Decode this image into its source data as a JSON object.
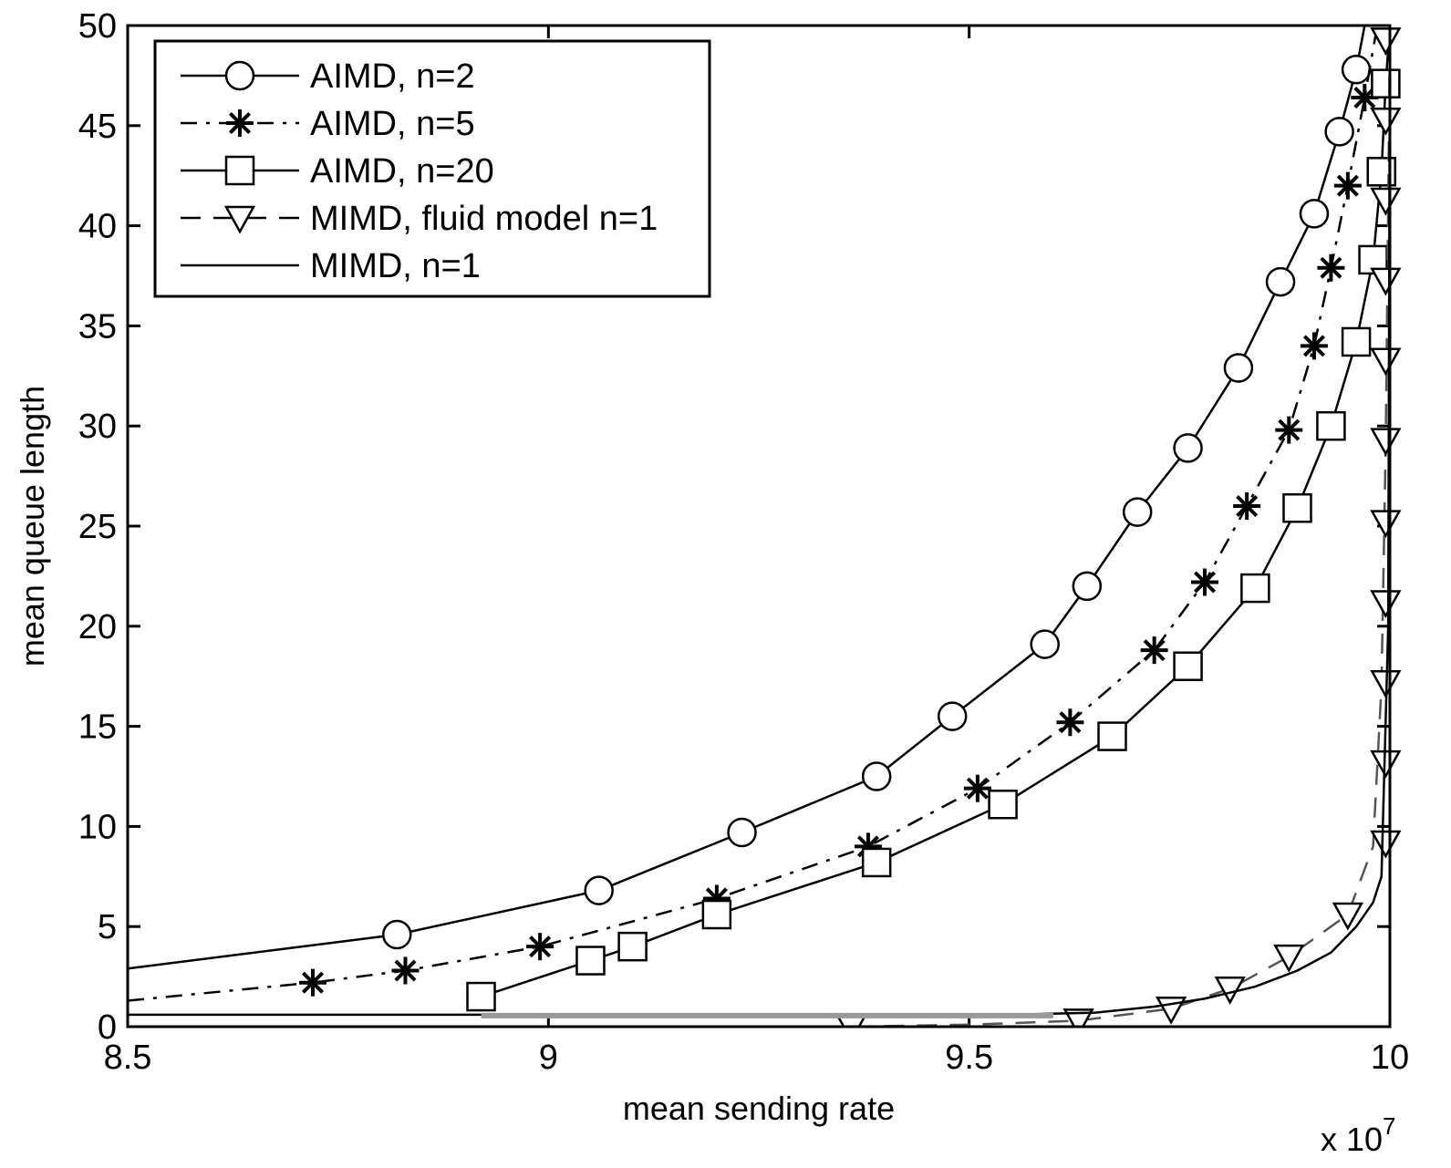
{
  "chart_data": {
    "type": "line",
    "xlabel": "mean sending rate",
    "ylabel": "mean queue length",
    "x_multiplier_label": "x 10",
    "x_multiplier_exponent": "7",
    "xlim": [
      8.5,
      10
    ],
    "ylim": [
      0,
      50
    ],
    "xticks": [
      {
        "value": 8.5,
        "label": "8.5"
      },
      {
        "value": 9,
        "label": "9"
      },
      {
        "value": 9.5,
        "label": "9.5"
      },
      {
        "value": 10,
        "label": "10"
      }
    ],
    "yticks": [
      {
        "value": 0,
        "label": "0"
      },
      {
        "value": 5,
        "label": "5"
      },
      {
        "value": 10,
        "label": "10"
      },
      {
        "value": 15,
        "label": "15"
      },
      {
        "value": 20,
        "label": "20"
      },
      {
        "value": 25,
        "label": "25"
      },
      {
        "value": 30,
        "label": "30"
      },
      {
        "value": 35,
        "label": "35"
      },
      {
        "value": 40,
        "label": "40"
      },
      {
        "value": 45,
        "label": "45"
      },
      {
        "value": 50,
        "label": "50"
      }
    ],
    "grid": false,
    "legend_position": "top-left",
    "series": [
      {
        "name": "AIMD, n=2",
        "marker": "circle",
        "line": "solid",
        "x": [
          8.5,
          8.82,
          9.06,
          9.23,
          9.39,
          9.48,
          9.59,
          9.64,
          9.7,
          9.76,
          9.82,
          9.87,
          9.91,
          9.94,
          9.96,
          9.97
        ],
        "y": [
          2.9,
          4.6,
          6.8,
          9.7,
          12.5,
          15.5,
          19.1,
          22.0,
          25.7,
          28.9,
          32.9,
          37.2,
          40.6,
          44.7,
          47.8,
          50
        ],
        "marker_indices": [
          1,
          2,
          3,
          4,
          5,
          6,
          7,
          8,
          9,
          10,
          11,
          12,
          13,
          14
        ]
      },
      {
        "name": "AIMD, n=5",
        "marker": "star",
        "line": "dashdot",
        "x": [
          8.5,
          8.72,
          8.83,
          8.99,
          9.2,
          9.38,
          9.51,
          9.62,
          9.72,
          9.78,
          9.83,
          9.88,
          9.91,
          9.93,
          9.95,
          9.97,
          9.985
        ],
        "y": [
          1.3,
          2.2,
          2.8,
          4.0,
          6.4,
          9.0,
          11.9,
          15.2,
          18.8,
          22.2,
          26.0,
          29.8,
          34.0,
          37.9,
          42.0,
          46.4,
          50
        ],
        "marker_indices": [
          1,
          2,
          3,
          4,
          5,
          6,
          7,
          8,
          9,
          10,
          11,
          12,
          13,
          14,
          15
        ]
      },
      {
        "name": "AIMD, n=20",
        "marker": "square",
        "line": "solid",
        "x": [
          8.92,
          9.05,
          9.1,
          9.2,
          9.39,
          9.54,
          9.67,
          9.76,
          9.84,
          9.89,
          9.93,
          9.96,
          9.98,
          9.99,
          9.995,
          10.0
        ],
        "y": [
          1.5,
          3.3,
          4.0,
          5.6,
          8.2,
          11.1,
          14.5,
          18.0,
          21.9,
          25.9,
          30.0,
          34.2,
          38.3,
          42.7,
          47.1,
          50
        ],
        "marker_indices": [
          0,
          1,
          2,
          3,
          4,
          5,
          6,
          7,
          8,
          9,
          10,
          11,
          12,
          13,
          14
        ]
      },
      {
        "name": "MIMD, fluid model n=1",
        "marker": "triangle-down",
        "line": "dashed",
        "x": [
          9.36,
          9.5,
          9.63,
          9.74,
          9.81,
          9.88,
          9.95,
          9.98,
          9.99,
          9.995,
          9.998,
          10.0
        ],
        "y": [
          0.0,
          0.1,
          0.3,
          0.9,
          1.9,
          3.5,
          5.6,
          9.0,
          17.0,
          29.0,
          41.0,
          50.0
        ],
        "marker_points": [
          [
            9.36,
            0.0
          ],
          [
            9.63,
            0.3
          ],
          [
            9.74,
            0.9
          ],
          [
            9.81,
            1.9
          ],
          [
            9.88,
            3.5
          ],
          [
            9.95,
            5.6
          ],
          [
            9.995,
            9.2
          ],
          [
            9.995,
            13.2
          ],
          [
            9.995,
            17.2
          ],
          [
            9.995,
            21.2
          ],
          [
            9.995,
            25.2
          ],
          [
            9.995,
            29.3
          ],
          [
            9.995,
            33.3
          ],
          [
            9.995,
            37.3
          ],
          [
            9.995,
            41.3
          ],
          [
            9.995,
            45.3
          ],
          [
            9.995,
            49.3
          ]
        ]
      },
      {
        "name": "MIMD, n=1",
        "marker": "none",
        "line": "solid",
        "x": [
          8.5,
          9.4,
          9.55,
          9.65,
          9.72,
          9.78,
          9.84,
          9.89,
          9.93,
          9.96,
          9.98,
          9.99,
          9.998,
          10.0
        ],
        "y": [
          0.6,
          0.6,
          0.6,
          0.7,
          1.0,
          1.4,
          2.0,
          2.8,
          3.7,
          5.0,
          6.2,
          7.5,
          20.0,
          50.0
        ],
        "marker_indices": []
      }
    ],
    "legend": [
      {
        "label": "AIMD, n=2"
      },
      {
        "label": "AIMD, n=5"
      },
      {
        "label": "AIMD, n=20"
      },
      {
        "label": "MIMD, fluid model n=1"
      },
      {
        "label": "MIMD, n=1"
      }
    ]
  }
}
